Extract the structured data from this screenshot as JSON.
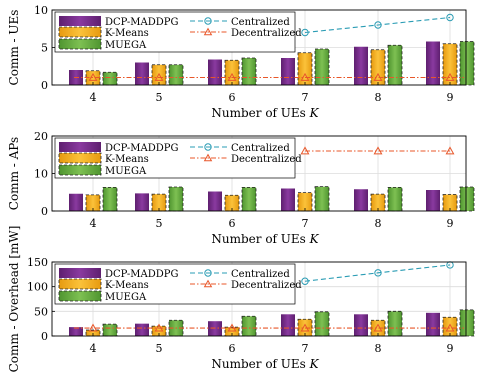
{
  "colors": {
    "DCP-MADDPG": "#7b2d8e",
    "K-Means": "#f5b324",
    "MUEGA": "#6ab044",
    "Centralized": "#2a9cb4",
    "Decentralized": "#e8572a"
  },
  "chart_data": [
    {
      "type": "bar",
      "categories": [
        "4",
        "5",
        "6",
        "7",
        "8",
        "9"
      ],
      "xlabel": "Number of UEs K",
      "ylabel": "Comm - UEs",
      "ylim": [
        0,
        10
      ],
      "yticks": [
        0,
        5,
        10
      ],
      "grid": true,
      "legend_placement": "top-left",
      "series": [
        {
          "name": "DCP-MADDPG",
          "kind": "bar",
          "values": [
            2.0,
            3.0,
            3.4,
            3.6,
            5.1,
            5.8
          ]
        },
        {
          "name": "K-Means",
          "kind": "bar",
          "values": [
            1.9,
            2.7,
            3.3,
            4.3,
            4.7,
            5.5
          ]
        },
        {
          "name": "MUEGA",
          "kind": "bar",
          "values": [
            1.7,
            2.7,
            3.6,
            4.8,
            5.3,
            5.8
          ]
        },
        {
          "name": "Centralized",
          "kind": "line",
          "values": [
            null,
            null,
            null,
            7.0,
            8.0,
            9.0
          ]
        },
        {
          "name": "Decentralized",
          "kind": "line",
          "values": [
            1.0,
            1.0,
            1.0,
            1.0,
            1.0,
            1.0
          ]
        }
      ]
    },
    {
      "type": "bar",
      "categories": [
        "4",
        "5",
        "6",
        "7",
        "8",
        "9"
      ],
      "xlabel": "Number of UEs K",
      "ylabel": "Comm - APs",
      "ylim": [
        0,
        20
      ],
      "yticks": [
        0,
        10,
        20
      ],
      "grid": true,
      "legend_placement": "top-left",
      "series": [
        {
          "name": "DCP-MADDPG",
          "kind": "bar",
          "values": [
            4.6,
            4.7,
            5.2,
            6.0,
            5.8,
            5.6
          ]
        },
        {
          "name": "K-Means",
          "kind": "bar",
          "values": [
            4.3,
            4.5,
            4.2,
            4.9,
            4.5,
            4.4
          ]
        },
        {
          "name": "MUEGA",
          "kind": "bar",
          "values": [
            6.3,
            6.4,
            6.3,
            6.5,
            6.3,
            6.4
          ]
        },
        {
          "name": "Centralized",
          "kind": "line",
          "values": [
            null,
            null,
            null,
            null,
            null,
            null
          ]
        },
        {
          "name": "Decentralized",
          "kind": "line",
          "values": [
            null,
            null,
            null,
            16.0,
            16.0,
            16.0
          ]
        }
      ]
    },
    {
      "type": "bar",
      "categories": [
        "4",
        "5",
        "6",
        "7",
        "8",
        "9"
      ],
      "xlabel": "Number of UEs K",
      "ylabel": "Comm - Overhead [mW]",
      "ylim": [
        0,
        150
      ],
      "yticks": [
        0,
        50,
        100,
        150
      ],
      "grid": true,
      "legend_placement": "top-left",
      "series": [
        {
          "name": "DCP-MADDPG",
          "kind": "bar",
          "values": [
            18,
            25,
            30,
            44,
            44,
            47
          ]
        },
        {
          "name": "K-Means",
          "kind": "bar",
          "values": [
            12,
            20,
            18,
            34,
            32,
            38
          ]
        },
        {
          "name": "MUEGA",
          "kind": "bar",
          "values": [
            24,
            32,
            40,
            49,
            50,
            53
          ]
        },
        {
          "name": "Centralized",
          "kind": "line",
          "values": [
            null,
            null,
            null,
            111,
            128,
            144
          ]
        },
        {
          "name": "Decentralized",
          "kind": "line",
          "values": [
            16,
            16,
            16,
            16,
            16,
            16
          ]
        }
      ]
    }
  ]
}
